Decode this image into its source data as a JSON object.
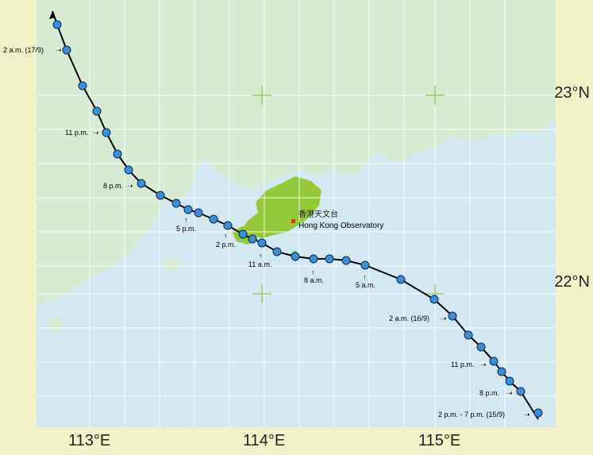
{
  "map": {
    "colors": {
      "sea": "#d4e8f2",
      "land": "#d6ebd2",
      "hong_kong": "#94c93a",
      "grid": "#ffffff",
      "track": "#000000",
      "marker_fill": "#3a8fd6",
      "observatory_marker": "#e03a1e",
      "frame_bg": "#f2f2c8"
    },
    "latitude_labels": [
      {
        "id": "lat-23",
        "text": "23°N"
      },
      {
        "id": "lat-22",
        "text": "22°N"
      }
    ],
    "longitude_labels": [
      {
        "id": "lon-113",
        "text": "113°E"
      },
      {
        "id": "lon-114",
        "text": "114°E"
      },
      {
        "id": "lon-115",
        "text": "115°E"
      }
    ],
    "observatory": {
      "chinese": "香港天文台",
      "english": "Hong Kong Observatory"
    },
    "time_labels": [
      {
        "id": "t-0200-17",
        "text": "2 a.m. (17/9)"
      },
      {
        "id": "t-2300",
        "text": "11 p.m."
      },
      {
        "id": "t-2000",
        "text": "8 p.m."
      },
      {
        "id": "t-1700",
        "text": "5 p.m."
      },
      {
        "id": "t-1400",
        "text": "2 p.m."
      },
      {
        "id": "t-1100",
        "text": "11 a.m."
      },
      {
        "id": "t-0800",
        "text": "8 a.m."
      },
      {
        "id": "t-0500",
        "text": "5 a.m."
      },
      {
        "id": "t-0200-16",
        "text": "2 a.m. (16/9)"
      },
      {
        "id": "t-2300b",
        "text": "11 p.m."
      },
      {
        "id": "t-2000b",
        "text": "8 p.m."
      },
      {
        "id": "t-1400-15",
        "text": "2 p.m. - 7 p.m. (15/9)"
      }
    ]
  }
}
